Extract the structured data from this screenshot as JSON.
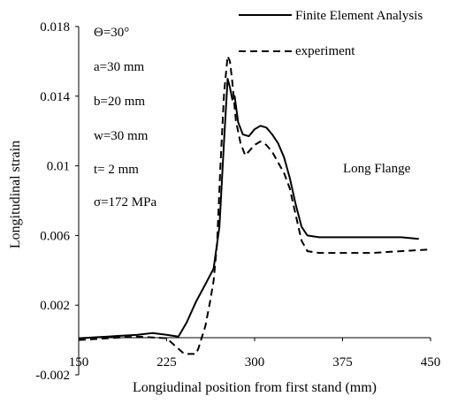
{
  "chart_data": {
    "type": "line",
    "title": "",
    "xlabel": "Longiudinal position from first stand (mm)",
    "ylabel": "Longitudinal strain",
    "xlim": [
      150,
      450
    ],
    "ylim": [
      -0.002,
      0.018
    ],
    "x_ticks": [
      150,
      225,
      300,
      375,
      450
    ],
    "y_ticks": [
      -0.002,
      0.002,
      0.006,
      0.01,
      0.014,
      0.018
    ],
    "x_tick_labels": [
      "150",
      "225",
      "300",
      "375",
      "450"
    ],
    "y_tick_labels": [
      "-0.002",
      "0.002",
      "0.006",
      "0.01",
      "0.014",
      "0.018"
    ],
    "grid": false,
    "legend_position": "top-right",
    "series": [
      {
        "name": "Finite Element Analysis",
        "style": "solid",
        "color": "#000000",
        "x": [
          150,
          175,
          200,
          213,
          225,
          235,
          242,
          250,
          258,
          265,
          270,
          274,
          277,
          279,
          281,
          283,
          286,
          290,
          295,
          300,
          305,
          310,
          315,
          320,
          325,
          330,
          335,
          340,
          345,
          355,
          375,
          400,
          425,
          440
        ],
        "y": [
          0.0001,
          0.0002,
          0.0003,
          0.0004,
          0.0003,
          0.0002,
          0.001,
          0.0022,
          0.0032,
          0.0041,
          0.0065,
          0.0115,
          0.015,
          0.0145,
          0.0138,
          0.014,
          0.0125,
          0.0118,
          0.0117,
          0.0121,
          0.0123,
          0.0122,
          0.0118,
          0.0113,
          0.0105,
          0.0093,
          0.0078,
          0.0065,
          0.006,
          0.0059,
          0.0059,
          0.0059,
          0.0059,
          0.0058
        ]
      },
      {
        "name": "experiment",
        "style": "dashed",
        "color": "#000000",
        "x": [
          150,
          175,
          200,
          225,
          240,
          250,
          252,
          258,
          262,
          265,
          268,
          271,
          274,
          277,
          279,
          281,
          284,
          288,
          292,
          296,
          300,
          305,
          310,
          315,
          320,
          325,
          330,
          335,
          340,
          345,
          355,
          375,
          400,
          425,
          450
        ],
        "y": [
          0.0,
          0.0001,
          0.0002,
          0.0001,
          -0.0008,
          -0.0008,
          -0.0005,
          0.0008,
          0.0022,
          0.0034,
          0.0055,
          0.0102,
          0.0142,
          0.0163,
          0.016,
          0.0148,
          0.0126,
          0.0113,
          0.0106,
          0.0109,
          0.0112,
          0.0114,
          0.0112,
          0.0108,
          0.0102,
          0.0096,
          0.0087,
          0.0072,
          0.0057,
          0.0051,
          0.005,
          0.005,
          0.005,
          0.0051,
          0.0052
        ]
      }
    ],
    "annotations": {
      "params": [
        "Θ=30°",
        "a=30 mm",
        "b=20 mm",
        "w=30 mm",
        "t= 2 mm",
        "σ=172 MPa"
      ],
      "region_label": "Long Flange"
    }
  }
}
